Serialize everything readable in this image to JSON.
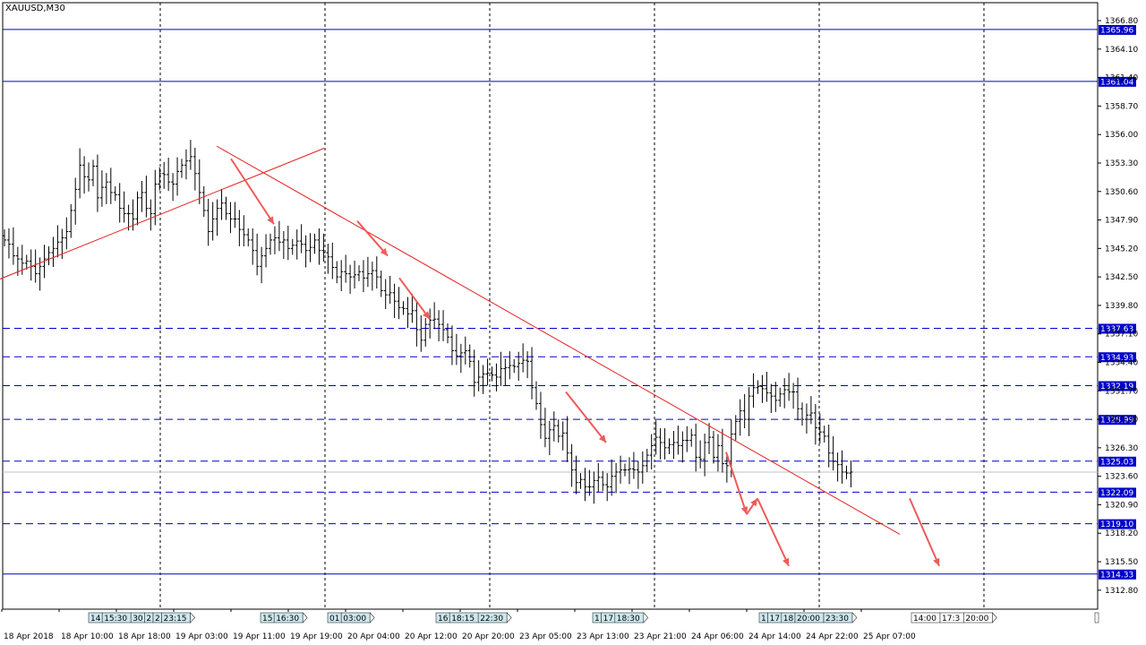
{
  "symbol_label": "XAUUSD,M30",
  "colors": {
    "candle": "#000000",
    "trendline": "#e62020",
    "arrow": "#ef5a5a",
    "level": "#0000cc",
    "grid": "#000000",
    "current_price_line": "#c0c0c0",
    "event_bg": "#cce8ee"
  },
  "chart_data": {
    "type": "candlestick",
    "title": "",
    "symbol": "XAUUSD",
    "timeframe": "M30",
    "ylim": [
      1311.0,
      1368.5
    ],
    "y_ticks": [
      "1366.80",
      "1364.10",
      "1361.40",
      "1358.70",
      "1356.00",
      "1353.30",
      "1350.60",
      "1347.90",
      "1345.20",
      "1342.50",
      "1339.80",
      "1337.10",
      "1334.40",
      "1331.70",
      "1329.00",
      "1326.30",
      "1323.60",
      "1320.90",
      "1318.20",
      "1315.50",
      "1312.80"
    ],
    "x_ticks": [
      "18 Apr 2018",
      "18 Apr 10:00",
      "18 Apr 18:00",
      "19 Apr 03:00",
      "19 Apr 11:00",
      "19 Apr 19:00",
      "20 Apr 04:00",
      "20 Apr 12:00",
      "20 Apr 20:00",
      "23 Apr 05:00",
      "23 Apr 13:00",
      "23 Apr 21:00",
      "24 Apr 06:00",
      "24 Apr 14:00",
      "24 Apr 22:00",
      "25 Apr 07:00"
    ],
    "grid": "vertical dotted",
    "solid_levels": [
      "1365.96",
      "1361.04",
      "1314.33"
    ],
    "dashed_levels": [
      "1337.63",
      "1334.93",
      "1332.19",
      "1328.99",
      "1325.03",
      "1322.09",
      "1319.10"
    ],
    "current_price": 1324.0,
    "trendlines": [
      {
        "from": [
          0,
          1342.3
        ],
        "to": [
          362,
          1354.7
        ]
      },
      {
        "from": [
          242,
          1354.9
        ],
        "to": [
          1005,
          1318.1
        ]
      }
    ],
    "arrows": [
      {
        "from": [
          258,
          1353.7
        ],
        "to": [
          306,
          1347.5
        ]
      },
      {
        "from": [
          399,
          1347.8
        ],
        "to": [
          433,
          1344.5
        ]
      },
      {
        "from": [
          446,
          1342.4
        ],
        "to": [
          480,
          1338.5
        ]
      },
      {
        "from": [
          632,
          1331.6
        ],
        "to": [
          677,
          1326.8
        ]
      },
      {
        "from": [
          811,
          1325.9
        ],
        "to": [
          834,
          1320.0
        ]
      },
      {
        "from": [
          834,
          1320.0
        ],
        "to": [
          846,
          1321.5
        ]
      },
      {
        "from": [
          846,
          1321.5
        ],
        "to": [
          881,
          1315.1
        ]
      },
      {
        "from": [
          1016,
          1321.5
        ],
        "to": [
          1049,
          1315.1
        ]
      }
    ],
    "event_groups": [
      {
        "labels": [
          "14",
          "15:30",
          "30",
          "2",
          "2",
          "23:15"
        ]
      },
      {
        "labels": [
          "15",
          "16:30"
        ]
      },
      {
        "labels": [
          "01",
          "03:00"
        ]
      },
      {
        "labels": [
          "16",
          "18:15",
          "22:30"
        ]
      },
      {
        "labels": [
          "1",
          "17",
          "18:30"
        ]
      },
      {
        "labels": [
          "1",
          "17",
          "18",
          "20:00",
          "23:30"
        ]
      },
      {
        "labels": [
          "14:00",
          "17:3",
          "20:00"
        ]
      }
    ],
    "candles_close": [
      1346.0,
      1345.6,
      1344.5,
      1344.2,
      1343.8,
      1344.0,
      1343.5,
      1342.8,
      1343.5,
      1344.2,
      1344.8,
      1345.2,
      1345.8,
      1346.2,
      1346.8,
      1348.8,
      1350.8,
      1353.1,
      1352.0,
      1351.7,
      1353.0,
      1350.0,
      1351.0,
      1351.5,
      1350.5,
      1350.3,
      1349.0,
      1348.5,
      1348.5,
      1348.0,
      1350.0,
      1350.5,
      1349.0,
      1348.5,
      1351.3,
      1352.3,
      1352.2,
      1351.5,
      1351.3,
      1352.5,
      1353.1,
      1353.5,
      1353.9,
      1352.3,
      1350.5,
      1348.8,
      1346.8,
      1348.0,
      1349.0,
      1349.5,
      1348.5,
      1348.0,
      1348.0,
      1347.0,
      1346.5,
      1346.0,
      1345.0,
      1343.5,
      1344.5,
      1345.2,
      1346.0,
      1346.2,
      1345.8,
      1346.0,
      1345.2,
      1345.5,
      1345.9,
      1345.6,
      1345.0,
      1345.3,
      1346.0,
      1345.0,
      1344.8,
      1344.4,
      1343.4,
      1342.5,
      1343.0,
      1342.8,
      1342.5,
      1342.7,
      1343.0,
      1342.4,
      1342.8,
      1343.1,
      1342.5,
      1341.2,
      1340.8,
      1341.0,
      1340.2,
      1339.6,
      1339.5,
      1339.0,
      1339.3,
      1337.5,
      1336.5,
      1338.0,
      1338.4,
      1338.5,
      1338.0,
      1337.5,
      1336.8,
      1335.5,
      1335.0,
      1335.3,
      1335.5,
      1334.5,
      1332.5,
      1333.0,
      1333.3,
      1333.4,
      1333.2,
      1333.0,
      1333.8,
      1333.9,
      1334.1,
      1334.0,
      1334.3,
      1334.6,
      1334.5,
      1332.0,
      1330.5,
      1328.5,
      1327.2,
      1328.0,
      1328.4,
      1327.4,
      1327.7,
      1325.8,
      1324.2,
      1323.0,
      1323.3,
      1322.6,
      1322.6,
      1323.2,
      1323.5,
      1322.8,
      1322.6,
      1323.6,
      1324.0,
      1324.2,
      1324.2,
      1324.3,
      1324.2,
      1324.0,
      1324.6,
      1325.6,
      1326.5,
      1327.3,
      1326.8,
      1326.3,
      1326.6,
      1326.8,
      1326.5,
      1327.0,
      1327.0,
      1327.5,
      1325.4,
      1325.2,
      1326.8,
      1327.3,
      1325.4,
      1326.5,
      1324.8,
      1324.6,
      1327.6,
      1328.8,
      1329.8,
      1329.0,
      1331.2,
      1332.0,
      1332.1,
      1331.9,
      1331.5,
      1331.2,
      1330.8,
      1331.4,
      1331.8,
      1331.6,
      1331.6,
      1330.0,
      1329.0,
      1329.4,
      1329.6,
      1328.2,
      1327.8,
      1327.4,
      1325.8,
      1325.0,
      1324.7,
      1324.0,
      1323.9,
      1324.0
    ]
  }
}
